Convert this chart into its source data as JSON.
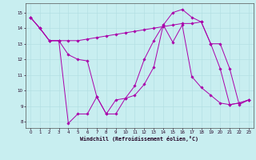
{
  "bg_color": "#c8eef0",
  "line_color": "#aa00aa",
  "grid_color": "#b0dde0",
  "xlabel": "Windchill (Refroidissement éolien,°C)",
  "xlim": [
    -0.5,
    23.5
  ],
  "ylim": [
    7.6,
    15.6
  ],
  "xticks": [
    0,
    1,
    2,
    3,
    4,
    5,
    6,
    7,
    8,
    9,
    10,
    11,
    12,
    13,
    14,
    15,
    16,
    17,
    18,
    19,
    20,
    21,
    22,
    23
  ],
  "yticks": [
    8,
    9,
    10,
    11,
    12,
    13,
    14,
    15
  ],
  "series": [
    {
      "x": [
        0,
        1,
        2,
        3,
        4,
        5,
        6,
        7,
        8,
        9,
        10,
        11,
        12,
        13,
        14,
        15,
        16,
        17,
        18,
        19,
        20,
        21,
        22,
        23
      ],
      "y": [
        14.7,
        14.0,
        13.2,
        13.2,
        12.3,
        12.0,
        11.9,
        9.6,
        8.5,
        9.4,
        9.5,
        9.7,
        10.4,
        11.5,
        14.2,
        15.0,
        15.2,
        14.7,
        14.4,
        13.0,
        11.4,
        9.1,
        9.2,
        9.4
      ]
    },
    {
      "x": [
        0,
        1,
        2,
        3,
        4,
        5,
        6,
        7,
        8,
        9,
        10,
        11,
        12,
        13,
        14,
        15,
        16,
        17,
        18,
        19,
        20,
        21,
        22,
        23
      ],
      "y": [
        14.7,
        14.0,
        13.2,
        13.2,
        13.2,
        13.2,
        13.3,
        13.4,
        13.5,
        13.6,
        13.7,
        13.8,
        13.9,
        14.0,
        14.1,
        14.2,
        14.3,
        14.3,
        14.4,
        13.0,
        13.0,
        11.4,
        9.1,
        9.4
      ]
    },
    {
      "x": [
        0,
        1,
        2,
        3,
        4,
        5,
        6,
        7,
        8,
        9,
        10,
        11,
        12,
        13,
        14,
        15,
        16,
        17,
        18,
        19,
        20,
        21,
        22,
        23
      ],
      "y": [
        14.7,
        14.0,
        13.2,
        13.2,
        7.9,
        8.5,
        8.5,
        9.6,
        8.5,
        8.5,
        9.5,
        10.3,
        12.0,
        13.2,
        14.2,
        13.1,
        14.2,
        10.9,
        10.2,
        9.7,
        9.2,
        9.1,
        9.2,
        9.4
      ]
    }
  ]
}
